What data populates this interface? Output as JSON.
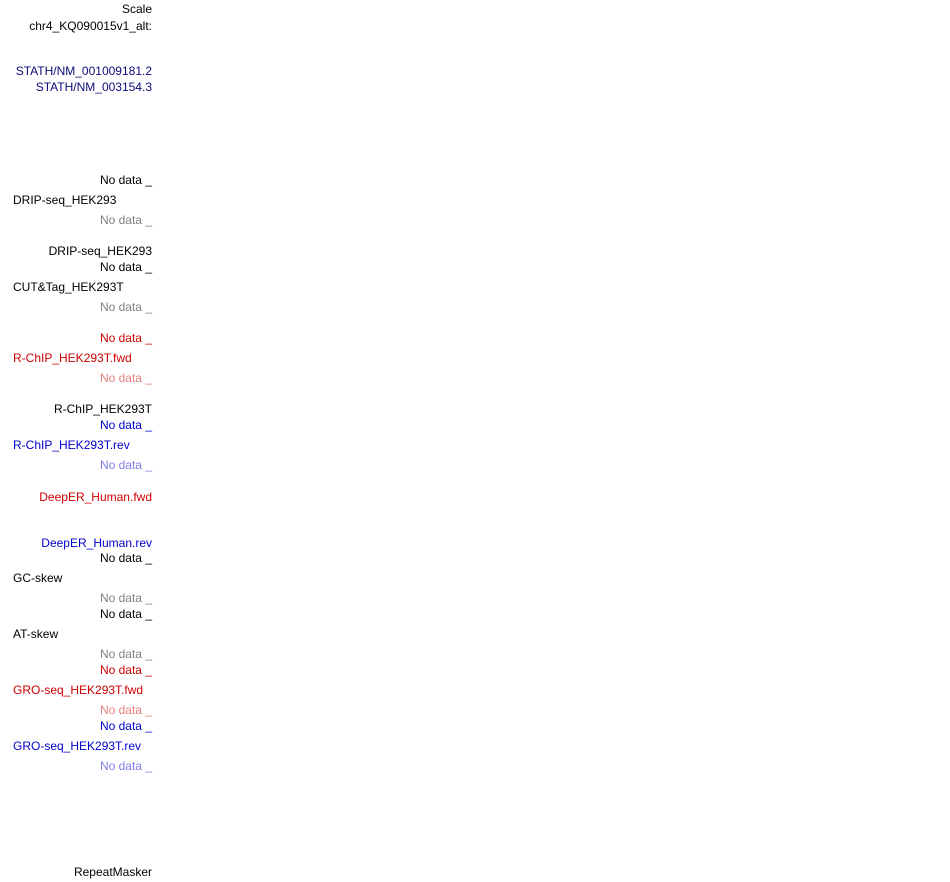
{
  "labels": [
    {
      "text": "Scale",
      "color": "#000000"
    },
    {
      "text": "chr4_KQ090015v1_alt:",
      "color": "#000000"
    },
    {
      "text": "STATH/NM_001009181.2",
      "color": "#0c0c78"
    },
    {
      "text": "STATH/NM_003154.3",
      "color": "#0c0c78"
    },
    {
      "text": "No data _",
      "color": "#000000"
    },
    {
      "text": "DRIP-seq_HEK293",
      "color": "#000000"
    },
    {
      "text": "No data _",
      "color": "#808080"
    },
    {
      "text": "DRIP-seq_HEK293",
      "color": "#000000"
    },
    {
      "text": "No data _",
      "color": "#000000"
    },
    {
      "text": "CUT&Tag_HEK293T",
      "color": "#000000"
    },
    {
      "text": "No data _",
      "color": "#808080"
    },
    {
      "text": "No data _",
      "color": "#cc0000"
    },
    {
      "text": "R-ChIP_HEK293T.fwd",
      "color": "#cc0000"
    },
    {
      "text": "No data _",
      "color": "#e57f7f"
    },
    {
      "text": "R-ChIP_HEK293T",
      "color": "#000000"
    },
    {
      "text": "No data _",
      "color": "#0000cc"
    },
    {
      "text": "R-ChIP_HEK293T.rev",
      "color": "#0000cc"
    },
    {
      "text": "No data _",
      "color": "#7f7fe5"
    },
    {
      "text": "DeepER_Human.fwd",
      "color": "#cc0000"
    },
    {
      "text": "DeepER_Human.rev",
      "color": "#0000cc"
    },
    {
      "text": "No data _",
      "color": "#000000"
    },
    {
      "text": "GC-skew",
      "color": "#000000"
    },
    {
      "text": "No data _",
      "color": "#808080"
    },
    {
      "text": "No data _",
      "color": "#000000"
    },
    {
      "text": "AT-skew",
      "color": "#000000"
    },
    {
      "text": "No data _",
      "color": "#808080"
    },
    {
      "text": "No data _",
      "color": "#cc0000"
    },
    {
      "text": "GRO-seq_HEK293T.fwd",
      "color": "#cc0000"
    },
    {
      "text": "No data _",
      "color": "#e57f7f"
    },
    {
      "text": "No data _",
      "color": "#0000cc"
    },
    {
      "text": "GRO-seq_HEK293T.rev",
      "color": "#0000cc"
    },
    {
      "text": "No data _",
      "color": "#7f7fe5"
    },
    {
      "text": "RepeatMasker",
      "color": "#000000"
    }
  ]
}
